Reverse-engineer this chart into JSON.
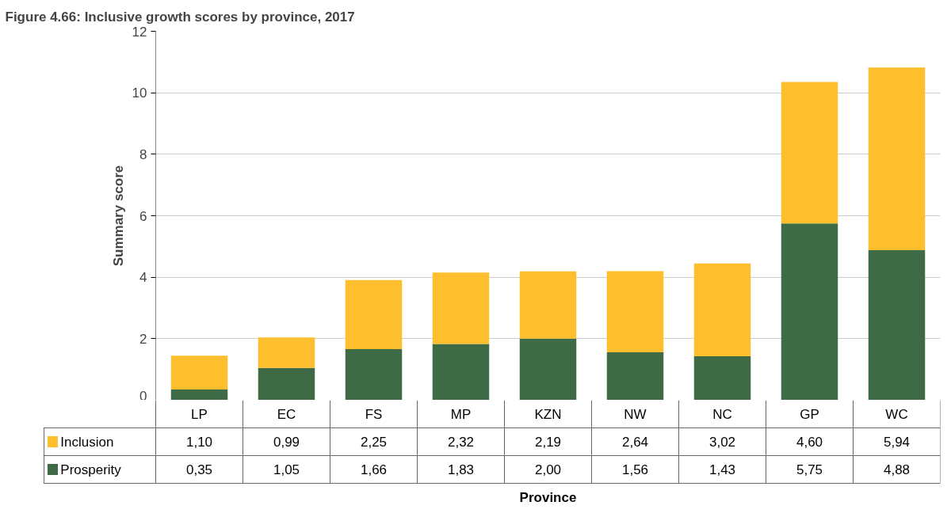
{
  "chart_data": {
    "type": "bar",
    "title": "Figure 4.66: Inclusive growth scores by province, 2017",
    "ylabel": "Summary score",
    "annotations": [
      "Province"
    ],
    "categories": [
      "LP",
      "EC",
      "FS",
      "MP",
      "KZN",
      "NW",
      "NC",
      "GP",
      "WC"
    ],
    "stacked": true,
    "series": [
      {
        "name": "Prosperity",
        "color": "#3e6b45",
        "values": [
          0.35,
          1.05,
          1.66,
          1.83,
          2.0,
          1.56,
          1.43,
          5.75,
          4.88
        ],
        "value_labels": [
          "0,35",
          "1,05",
          "1,66",
          "1,83",
          "2,00",
          "1,56",
          "1,43",
          "5,75",
          "4,88"
        ]
      },
      {
        "name": "Inclusion",
        "color": "#fdbf2d",
        "values": [
          1.1,
          0.99,
          2.25,
          2.32,
          2.19,
          2.64,
          3.02,
          4.6,
          5.94
        ],
        "value_labels": [
          "1,10",
          "0,99",
          "2,25",
          "2,32",
          "2,19",
          "2,64",
          "3,02",
          "4,60",
          "5,94"
        ]
      }
    ],
    "ylim": [
      0,
      12
    ],
    "yticks": [
      0,
      2,
      4,
      6,
      8,
      10,
      12
    ],
    "grid": "y",
    "legend": "bottom"
  }
}
